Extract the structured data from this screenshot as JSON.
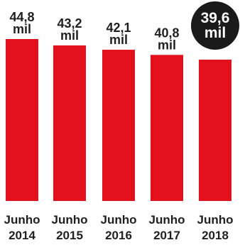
{
  "chart_data": {
    "type": "bar",
    "categories": [
      [
        "Junho",
        "2014"
      ],
      [
        "Junho",
        "2015"
      ],
      [
        "Junho",
        "2016"
      ],
      [
        "Junho",
        "2017"
      ],
      [
        "Junho",
        "2018"
      ]
    ],
    "values": [
      44.8,
      43.2,
      42.1,
      40.8,
      39.6
    ],
    "value_labels": [
      [
        "44,8",
        "mil"
      ],
      [
        "43,2",
        "mil"
      ],
      [
        "42,1",
        "mil"
      ],
      [
        "40,8",
        "mil"
      ],
      [
        "39,6",
        "mil"
      ]
    ],
    "highlight_index": 4,
    "colors": {
      "bar": "#e3111b",
      "highlight_badge": "#1a1a1a",
      "text": "#1f1f1f"
    },
    "grid": false,
    "legend": "none"
  }
}
